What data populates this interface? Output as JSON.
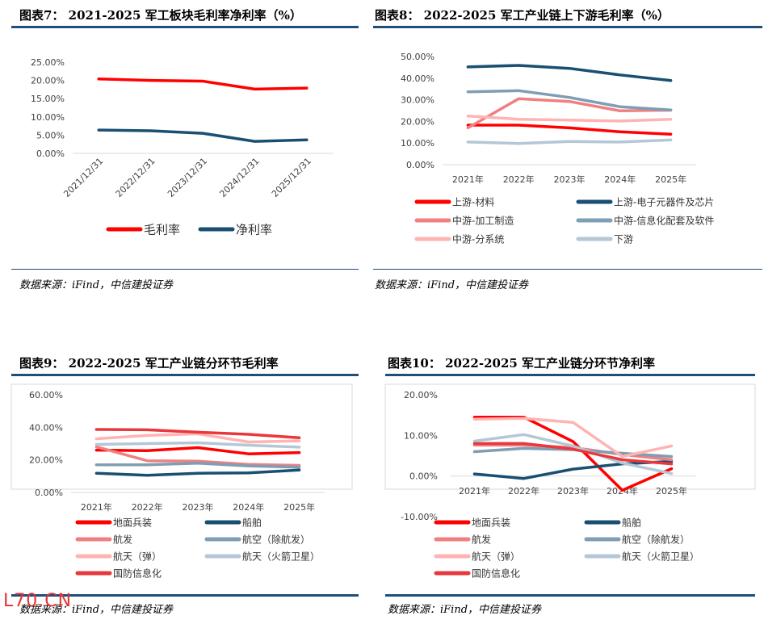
{
  "panels": [
    {
      "title": "图表7：  2021-2025 军工板块毛利率净利率（%）",
      "source": "数据来源：iFind，中信建投证券"
    },
    {
      "title": "图表8：  2022-2025 军工产业链上下游毛利率（%）",
      "source": "数据来源：iFind，中信建投证券"
    },
    {
      "title": "图表9：  2022-2025 军工产业链分环节毛利率",
      "source": "数据来源：iFind，中信建投证券"
    },
    {
      "title": "图表10：  2022-2025 军工产业链分环节净利率",
      "source": "数据来源：iFind，中信建投证券"
    }
  ],
  "watermark": "L70.CN",
  "chart_data": [
    {
      "type": "line",
      "categories": [
        "2021/12/31",
        "2022/12/31",
        "2023/12/31",
        "2024/12/31",
        "2025/12/31"
      ],
      "ylim": [
        0,
        25
      ],
      "yticks": [
        "0.00%",
        "5.00%",
        "10.00%",
        "15.00%",
        "20.00%",
        "25.00%"
      ],
      "legend_position": "bottom",
      "series": [
        {
          "name": "毛利率",
          "color": "#ff0000",
          "values": [
            20.4,
            20.0,
            19.8,
            17.6,
            17.9
          ]
        },
        {
          "name": "净利率",
          "color": "#1a4f72",
          "values": [
            6.4,
            6.2,
            5.5,
            3.3,
            3.7
          ]
        }
      ]
    },
    {
      "type": "line",
      "categories": [
        "2021年",
        "2022年",
        "2023年",
        "2024年",
        "2025年"
      ],
      "ylim": [
        0,
        50
      ],
      "yticks": [
        "0.00%",
        "10.00%",
        "20.00%",
        "30.00%",
        "40.00%",
        "50.00%"
      ],
      "legend_position": "bottom",
      "series": [
        {
          "name": "上游-材料",
          "color": "#ff0000",
          "values": [
            18.3,
            18.3,
            17.0,
            15.2,
            14.1
          ]
        },
        {
          "name": "上游-电子元器件及芯片",
          "color": "#1a4f72",
          "values": [
            45.2,
            45.9,
            44.5,
            41.5,
            38.9
          ]
        },
        {
          "name": "中游-加工制造",
          "color": "#f08080",
          "values": [
            17.0,
            30.5,
            29.2,
            24.9,
            25.2
          ]
        },
        {
          "name": "中游-信息化配套及软件",
          "color": "#7f9db3",
          "values": [
            33.7,
            34.2,
            31.1,
            26.8,
            25.3
          ]
        },
        {
          "name": "中游-分系统",
          "color": "#ffb3b3",
          "values": [
            22.5,
            21.0,
            20.6,
            20.2,
            21.0
          ]
        },
        {
          "name": "下游",
          "color": "#b4c7d6",
          "values": [
            10.5,
            9.8,
            10.7,
            10.5,
            11.4
          ]
        }
      ]
    },
    {
      "type": "line",
      "categories": [
        "2021年",
        "2022年",
        "2023年",
        "2024年",
        "2025年"
      ],
      "ylim": [
        0,
        60
      ],
      "yticks": [
        "0.00%",
        "20.00%",
        "40.00%",
        "60.00%"
      ],
      "legend_position": "bottom",
      "series": [
        {
          "name": "地面兵装",
          "color": "#ff0000",
          "values": [
            26.0,
            25.7,
            27.5,
            23.7,
            24.5
          ]
        },
        {
          "name": "船舶",
          "color": "#1a4f72",
          "values": [
            11.8,
            10.5,
            11.8,
            12.0,
            13.8
          ]
        },
        {
          "name": "航发",
          "color": "#f08080",
          "values": [
            28.0,
            19.5,
            19.2,
            17.2,
            16.6
          ]
        },
        {
          "name": "航空（除航发）",
          "color": "#7f9db3",
          "values": [
            17.0,
            17.0,
            18.0,
            16.3,
            15.5
          ]
        },
        {
          "name": "航天（弹）",
          "color": "#ffb3b3",
          "values": [
            33.0,
            35.0,
            36.0,
            31.0,
            31.7
          ]
        },
        {
          "name": "航天（火箭卫星）",
          "color": "#b4c7d6",
          "values": [
            29.5,
            30.0,
            30.5,
            29.0,
            27.8
          ]
        },
        {
          "name": "国防信息化",
          "color": "#e8383d",
          "values": [
            38.7,
            38.5,
            37.0,
            35.7,
            33.6
          ]
        }
      ]
    },
    {
      "type": "line",
      "categories": [
        "2021年",
        "2022年",
        "2023年",
        "2024年",
        "2025年"
      ],
      "ylim": [
        -10,
        20
      ],
      "yticks": [
        "-10.00%",
        "0.00%",
        "10.00%",
        "20.00%"
      ],
      "legend_position": "bottom",
      "series": [
        {
          "name": "地面兵装",
          "color": "#ff0000",
          "values": [
            14.5,
            14.5,
            8.5,
            -3.5,
            1.8
          ]
        },
        {
          "name": "船舶",
          "color": "#1a4f72",
          "values": [
            0.5,
            -0.6,
            1.7,
            3.0,
            3.6
          ]
        },
        {
          "name": "航发",
          "color": "#f08080",
          "values": [
            7.6,
            7.6,
            7.0,
            5.3,
            4.0
          ]
        },
        {
          "name": "航空（除航发）",
          "color": "#7f9db3",
          "values": [
            6.0,
            6.8,
            6.5,
            5.6,
            4.8
          ]
        },
        {
          "name": "航天（弹）",
          "color": "#ffb3b3",
          "values": [
            14.0,
            14.2,
            13.2,
            4.8,
            7.4
          ]
        },
        {
          "name": "航天（火箭卫星）",
          "color": "#b4c7d6",
          "values": [
            8.6,
            10.2,
            7.4,
            3.2,
            0.6
          ]
        },
        {
          "name": "国防信息化",
          "color": "#e8383d",
          "values": [
            8.0,
            8.0,
            6.6,
            4.0,
            3.0
          ]
        }
      ]
    }
  ]
}
